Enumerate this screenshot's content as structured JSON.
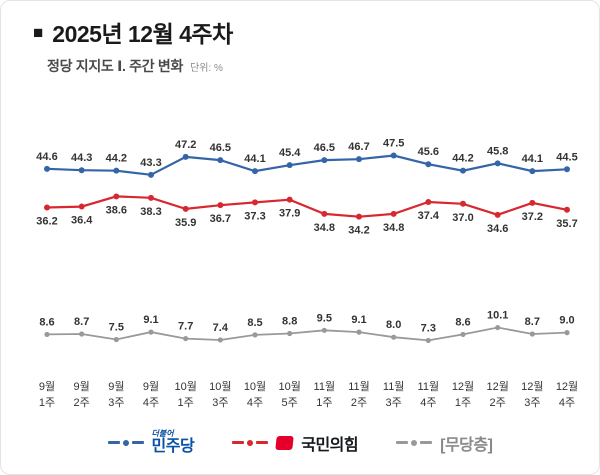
{
  "header": {
    "bullet": "■",
    "title": "2025년 12월 4주차",
    "subtitle": "정당 지지도 Ⅰ. 주간 변화",
    "unit": "단위: %"
  },
  "chart_data": {
    "type": "line",
    "unit": "%",
    "categories": [
      "9월 1주",
      "9월 2주",
      "9월 3주",
      "9월 4주",
      "10월 1주",
      "10월 3주",
      "10월 4주",
      "10월 5주",
      "11월 1주",
      "11월 2주",
      "11월 3주",
      "11월 4주",
      "12월 1주",
      "12월 2주",
      "12월 3주",
      "12월 4주"
    ],
    "series": [
      {
        "name": "민주당",
        "color": "#3465a8",
        "label_position": "above",
        "values": [
          44.6,
          44.3,
          44.2,
          43.3,
          47.2,
          46.5,
          44.1,
          45.4,
          46.5,
          46.7,
          47.5,
          45.6,
          44.2,
          45.8,
          44.1,
          44.5
        ]
      },
      {
        "name": "국민의힘",
        "color": "#d7282f",
        "label_position": "below",
        "values": [
          36.2,
          36.4,
          38.6,
          38.3,
          35.9,
          36.7,
          37.3,
          37.9,
          34.8,
          34.2,
          34.8,
          37.4,
          37.0,
          34.6,
          37.2,
          35.7
        ]
      },
      {
        "name": "[무당층]",
        "color": "#999999",
        "label_position": "above",
        "values": [
          8.6,
          8.7,
          7.5,
          9.1,
          7.7,
          7.4,
          8.5,
          8.8,
          9.5,
          9.1,
          8.0,
          7.3,
          8.6,
          10.1,
          8.7,
          9.0
        ]
      }
    ],
    "ylim": [
      0,
      55
    ],
    "grid": false,
    "legend_position": "bottom"
  },
  "legend": {
    "items": [
      {
        "label": "민주당",
        "sub": "더불어",
        "color": "#3465a8",
        "text_color": "#0b52a4"
      },
      {
        "label": "국민의힘",
        "sub": "",
        "color": "#d7282f",
        "text_color": "#15181d",
        "icon": "ppp-flag-icon"
      },
      {
        "label": "[무당층]",
        "sub": "",
        "color": "#999999",
        "text_color": "#8a8a8a"
      }
    ]
  }
}
